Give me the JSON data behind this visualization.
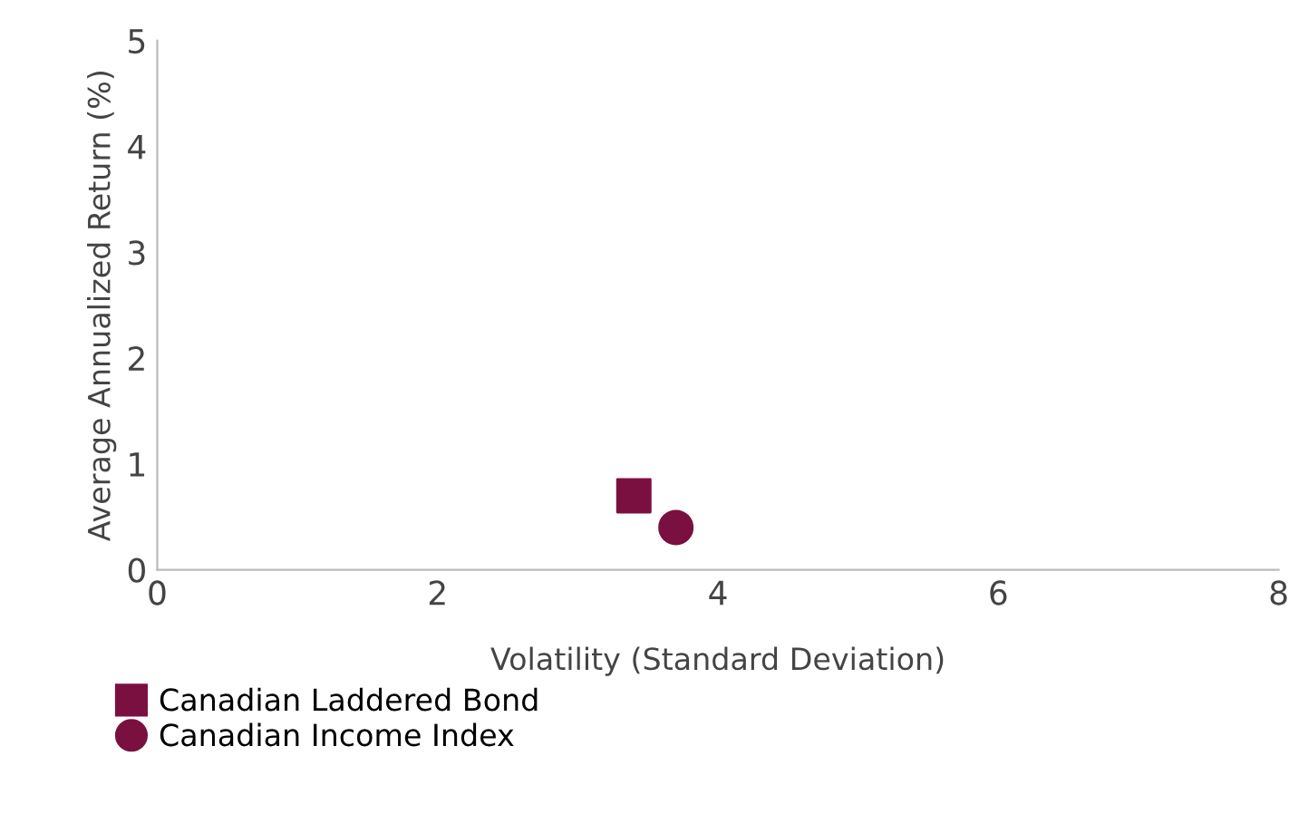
{
  "chart_data": {
    "type": "scatter",
    "xlabel": "Volatility (Standard Deviation)",
    "ylabel": "Average Annualized Return (%)",
    "xlim": [
      0,
      8
    ],
    "xticks": [
      0,
      2,
      4,
      6,
      8
    ],
    "ylim": [
      0,
      5
    ],
    "yticks": [
      0,
      1,
      2,
      3,
      4,
      5
    ],
    "grid": false,
    "legend": "bottom left",
    "series": [
      {
        "name": "Canadian Laddered Bond",
        "color": "#7a1040",
        "marker": "square",
        "x": [
          3.4
        ],
        "values": [
          0.7
        ]
      },
      {
        "name": "Canadian Income Index",
        "color": "#7a1040",
        "marker": "circle",
        "x": [
          3.7
        ],
        "values": [
          0.4
        ]
      }
    ]
  }
}
